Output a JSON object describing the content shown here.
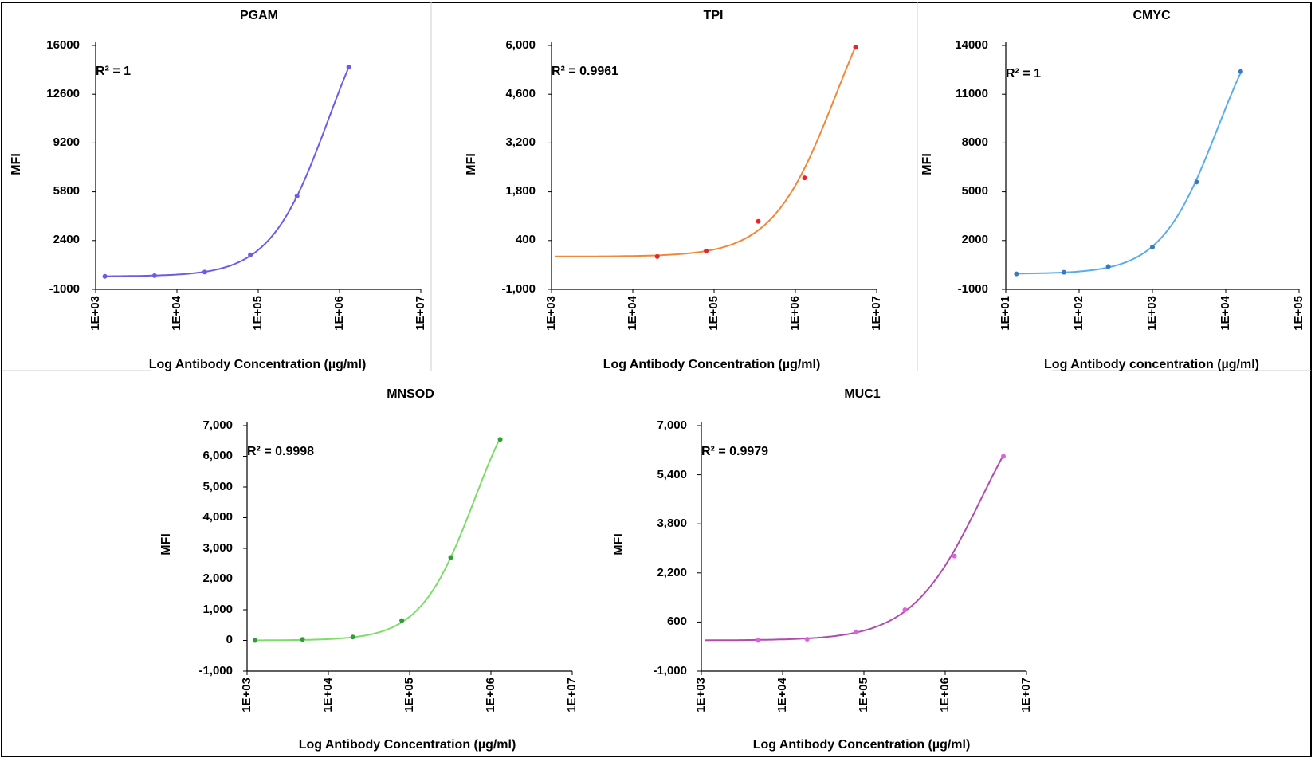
{
  "chart_data": [
    {
      "type": "scatter",
      "title": "PGAM",
      "xlabel": "Log Antibody Concentration (µg/ml)",
      "ylabel": "MFI",
      "annotation": "R² = 1",
      "x_log": true,
      "xlim": [
        1000,
        10000000
      ],
      "x_ticks": [
        "1E+03",
        "1E+04",
        "1E+05",
        "1E+06",
        "1E+07"
      ],
      "ylim": [
        -1000,
        16000
      ],
      "y_ticks": [
        "-1000",
        "2400",
        "5800",
        "9200",
        "12600",
        "16000"
      ],
      "grid": false,
      "legend": "none",
      "color": "#6b5ce7",
      "series": [
        {
          "x": [
            1300,
            5300,
            22000,
            80000,
            300000,
            1300000
          ],
          "y": [
            -100,
            -50,
            200,
            1400,
            5500,
            14500
          ]
        }
      ]
    },
    {
      "type": "scatter",
      "title": "TPI",
      "xlabel": "Log Antibody Concentration (µg/ml)",
      "ylabel": "MFI",
      "annotation": "R² = 0.9961",
      "x_log": true,
      "xlim": [
        1000,
        10000000
      ],
      "x_ticks": [
        "1E+03",
        "1E+04",
        "1E+05",
        "1E+06",
        "1E+07"
      ],
      "ylim": [
        -1000,
        6000
      ],
      "y_ticks": [
        "-1,000",
        "400",
        "1,800",
        "3,200",
        "4,600",
        "6,000"
      ],
      "grid": false,
      "legend": "none",
      "color": "#f0883a",
      "marker_color": "#e8242a",
      "series": [
        {
          "x": [
            20000,
            80000,
            350000,
            1300000,
            5500000
          ],
          "y": [
            -60,
            100,
            950,
            2200,
            5950
          ]
        }
      ]
    },
    {
      "type": "scatter",
      "title": "CMYC",
      "xlabel": "Log Antibody concentration (µg/ml)",
      "ylabel": "MFI",
      "annotation": "R² = 1",
      "x_log": true,
      "xlim": [
        10,
        100000
      ],
      "x_ticks": [
        "1E+01",
        "1E+02",
        "1E+03",
        "1E+04",
        "1E+05"
      ],
      "ylim": [
        -1000,
        14000
      ],
      "y_ticks": [
        "-1000",
        "2000",
        "5000",
        "8000",
        "11000",
        "14000"
      ],
      "grid": false,
      "legend": "none",
      "color": "#5aaee8",
      "marker_color": "#3a78c2",
      "series": [
        {
          "x": [
            14,
            62,
            250,
            1000,
            4000,
            16000
          ],
          "y": [
            -50,
            50,
            400,
            1600,
            5600,
            12400
          ]
        }
      ]
    },
    {
      "type": "scatter",
      "title": "MNSOD",
      "xlabel": "Log Antibody Concentration (µg/ml)",
      "ylabel": "MFI",
      "annotation": "R² = 0.9998",
      "x_log": true,
      "xlim": [
        1000,
        10000000
      ],
      "x_ticks": [
        "1E+03",
        "1E+04",
        "1E+05",
        "1E+06",
        "1E+07"
      ],
      "ylim": [
        -1000,
        7000
      ],
      "y_ticks": [
        "-1,000",
        "0",
        "1,000",
        "2,000",
        "3,000",
        "4,000",
        "5,000",
        "6,000",
        "7,000"
      ],
      "grid": false,
      "legend": "none",
      "color": "#7ddc6a",
      "marker_color": "#2f9e3a",
      "series": [
        {
          "x": [
            1250,
            4800,
            20000,
            80000,
            320000,
            1300000
          ],
          "y": [
            0,
            30,
            110,
            650,
            2700,
            6550
          ]
        }
      ]
    },
    {
      "type": "scatter",
      "title": "MUC1",
      "xlabel": "Log Antibody Concentration (µg/ml)",
      "ylabel": "MFI",
      "annotation": "R² = 0.9979",
      "x_log": true,
      "xlim": [
        1000,
        10000000
      ],
      "x_ticks": [
        "1E+03",
        "1E+04",
        "1E+05",
        "1E+06",
        "1E+07"
      ],
      "ylim": [
        -1000,
        7000
      ],
      "y_ticks": [
        "-1,000",
        "600",
        "2,200",
        "3,800",
        "5,400",
        "7,000"
      ],
      "grid": false,
      "legend": "none",
      "color": "#b04cb0",
      "marker_color": "#e060e0",
      "series": [
        {
          "x": [
            5000,
            20000,
            80000,
            320000,
            1300000,
            5200000
          ],
          "y": [
            0,
            40,
            280,
            1000,
            2750,
            6000
          ]
        }
      ]
    }
  ]
}
